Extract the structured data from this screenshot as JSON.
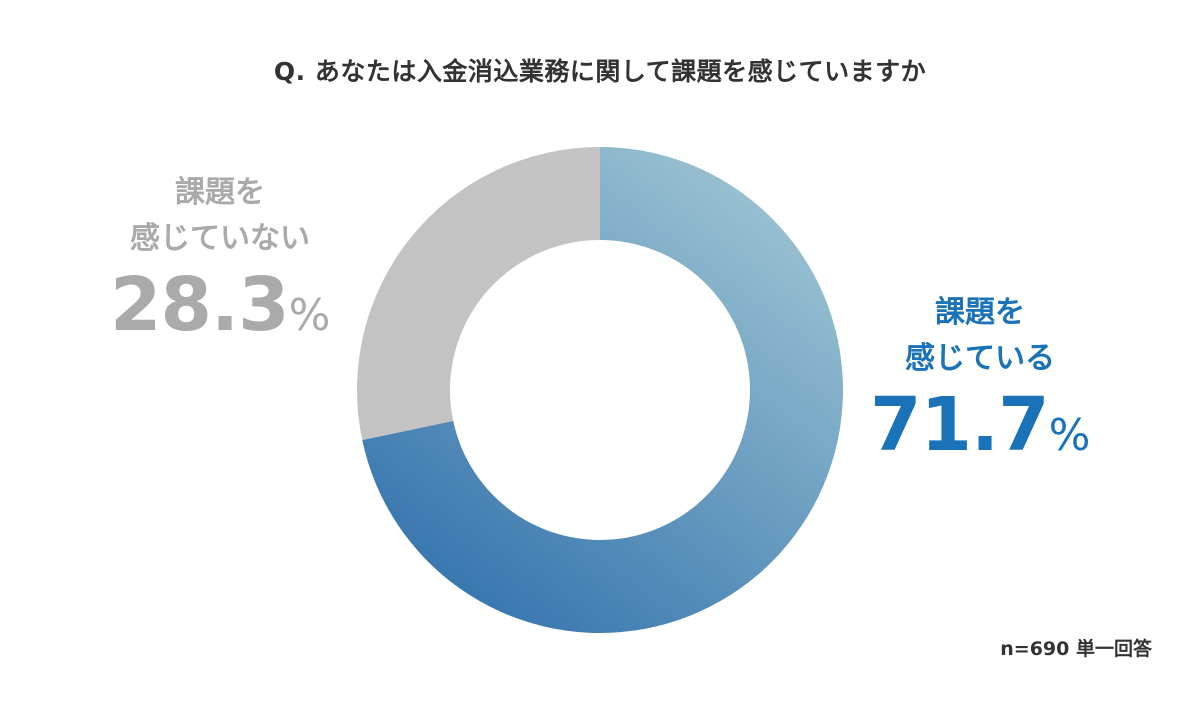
{
  "title": "Q. あなたは入金消込業務に関して課題を感じていますか",
  "labels": {
    "no": {
      "line1": "課題を",
      "line2": "感じていない",
      "value": "28.3",
      "unit": "%"
    },
    "yes": {
      "line1": "課題を",
      "line2": "感じている",
      "value": "71.7",
      "unit": "%"
    }
  },
  "note": "n=690 単一回答",
  "colors": {
    "yes_start": "#a6ccd6",
    "yes_end": "#3372ad",
    "no": "#c3c3c3",
    "yes_text": "#1a73b8",
    "no_text": "#aaaaaa"
  },
  "chart_data": {
    "type": "pie",
    "subtype": "donut",
    "title": "Q. あなたは入金消込業務に関して課題を感じていますか",
    "categories": [
      "課題を感じている",
      "課題を感じていない"
    ],
    "values": [
      71.7,
      28.3
    ],
    "unit": "%",
    "n": 690,
    "note": "n=690 単一回答",
    "start_angle": "12 o'clock, clockwise",
    "legend": "none (direct labels)"
  }
}
